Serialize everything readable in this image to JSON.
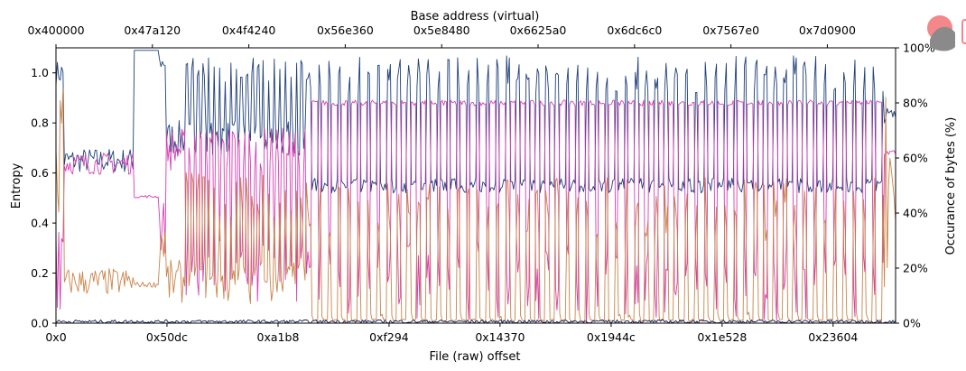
{
  "chart_data": {
    "type": "line",
    "title": "",
    "top_xlabel": "Base address (virtual)",
    "xlabel": "File (raw) offset",
    "ylabel": "Entropy",
    "y2label": "Occurance of bytes (%)",
    "ylim": [
      0,
      1.1
    ],
    "y2lim": [
      0,
      100
    ],
    "xlim": [
      0,
      1
    ],
    "grid": false,
    "legend": "none",
    "x_ticks": [
      {
        "pos": 0.0,
        "label": "0x0"
      },
      {
        "pos": 0.1322,
        "label": "0x50dc"
      },
      {
        "pos": 0.2645,
        "label": "0xa1b8"
      },
      {
        "pos": 0.3967,
        "label": "0xf294"
      },
      {
        "pos": 0.5289,
        "label": "0x14370"
      },
      {
        "pos": 0.6612,
        "label": "0x1944c"
      },
      {
        "pos": 0.7934,
        "label": "0x1e528"
      },
      {
        "pos": 0.9256,
        "label": "0x23604"
      }
    ],
    "top_ticks": [
      {
        "pos": 0.0,
        "label": "0x400000"
      },
      {
        "pos": 0.1148,
        "label": "0x47a120"
      },
      {
        "pos": 0.2297,
        "label": "0x4f4240"
      },
      {
        "pos": 0.3445,
        "label": "0x56e360"
      },
      {
        "pos": 0.4594,
        "label": "0x5e8480"
      },
      {
        "pos": 0.5742,
        "label": "0x6625a0"
      },
      {
        "pos": 0.6891,
        "label": "0x6dc6c0"
      },
      {
        "pos": 0.8039,
        "label": "0x7567e0"
      },
      {
        "pos": 0.9187,
        "label": "0x7d0900"
      }
    ],
    "y_ticks": [
      0.0,
      0.2,
      0.4,
      0.6,
      0.8,
      1.0
    ],
    "y_tick_labels": [
      "0.0",
      "0.2",
      "0.4",
      "0.6",
      "0.8",
      "1.0"
    ],
    "y2_ticks": [
      0,
      20,
      40,
      60,
      80,
      100
    ],
    "y2_tick_labels": [
      "0%",
      "20%",
      "40%",
      "60%",
      "80%",
      "100%"
    ],
    "n_points": 600,
    "spike_regions": [
      {
        "start": 0.155,
        "end": 0.3,
        "period": 0.0065
      },
      {
        "start": 0.3,
        "end": 0.985,
        "period": 0.0118
      }
    ],
    "series": [
      {
        "color": "#1f3f7a",
        "axis": "entropy",
        "segments": [
          {
            "start": 0.0,
            "end": 0.009,
            "base": 1.0,
            "noise": 0.05
          },
          {
            "start": 0.009,
            "end": 0.092,
            "base": 0.65,
            "noise": 0.05
          },
          {
            "start": 0.092,
            "end": 0.122,
            "base": 1.09,
            "noise": 0.0
          },
          {
            "start": 0.122,
            "end": 0.13,
            "base": 1.04,
            "noise": 0.03
          },
          {
            "start": 0.13,
            "end": 0.3,
            "base": 0.74,
            "noise": 0.07,
            "spike": 0.32
          },
          {
            "start": 0.3,
            "end": 0.985,
            "base": 0.55,
            "noise": 0.03,
            "spike": 0.52
          },
          {
            "start": 0.985,
            "end": 1.0,
            "base": 0.83,
            "noise": 0.03
          }
        ]
      },
      {
        "color": "#d63fb2",
        "axis": "percent",
        "segments": [
          {
            "start": 0.0,
            "end": 0.009,
            "base": 30,
            "noise": 25
          },
          {
            "start": 0.009,
            "end": 0.092,
            "base": 58,
            "noise": 4
          },
          {
            "start": 0.092,
            "end": 0.122,
            "base": 46,
            "noise": 0.5
          },
          {
            "start": 0.122,
            "end": 0.13,
            "base": 35,
            "noise": 10
          },
          {
            "start": 0.13,
            "end": 0.3,
            "base": 63,
            "noise": 8,
            "dip": 55
          },
          {
            "start": 0.3,
            "end": 0.985,
            "base": 80,
            "noise": 1,
            "dip": 80
          },
          {
            "start": 0.985,
            "end": 1.0,
            "base": 62,
            "noise": 1
          }
        ]
      },
      {
        "color": "#c8844a",
        "axis": "percent",
        "segments": [
          {
            "start": 0.0,
            "end": 0.009,
            "base": 60,
            "noise": 30
          },
          {
            "start": 0.009,
            "end": 0.092,
            "base": 15,
            "noise": 5
          },
          {
            "start": 0.092,
            "end": 0.122,
            "base": 14,
            "noise": 1
          },
          {
            "start": 0.122,
            "end": 0.13,
            "base": 30,
            "noise": 10
          },
          {
            "start": 0.13,
            "end": 0.3,
            "base": 15,
            "noise": 8,
            "spike": 40
          },
          {
            "start": 0.3,
            "end": 0.985,
            "base": 1,
            "noise": 0.5,
            "spike": 52
          },
          {
            "start": 0.985,
            "end": 1.0,
            "base": 50,
            "noise": 40
          }
        ]
      },
      {
        "color": "#101a50",
        "axis": "percent",
        "segments": [
          {
            "start": 0.0,
            "end": 1.0,
            "base": 0.6,
            "noise": 0.6
          }
        ]
      }
    ]
  },
  "logo": {
    "name": "cutter-logo",
    "colors": [
      "#f28a8a",
      "#888888"
    ]
  }
}
